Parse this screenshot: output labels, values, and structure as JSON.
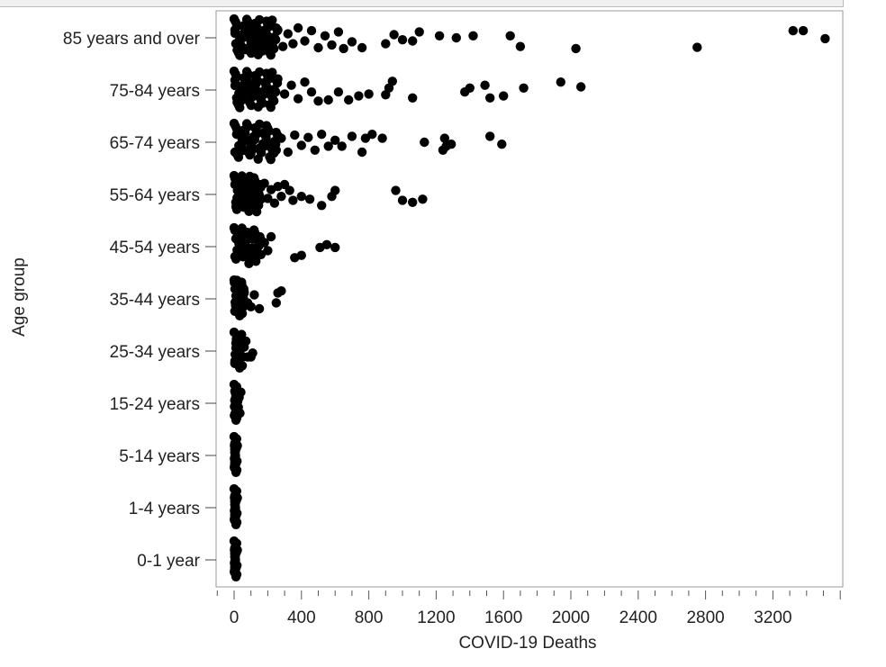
{
  "chart_data": {
    "type": "scatter",
    "title": "",
    "xlabel": "COVID-19 Deaths",
    "ylabel": "Age group",
    "xlim": [
      -100,
      3650
    ],
    "x_ticks": [
      0,
      400,
      800,
      1200,
      1600,
      2000,
      2400,
      2800,
      3200
    ],
    "categories": [
      "85 years and over",
      "75-84 years",
      "65-74 years",
      "55-64 years",
      "45-54 years",
      "35-44 years",
      "25-34 years",
      "15-24 years",
      "5-14 years",
      "1-4 years",
      "0-1 year"
    ],
    "grid": false,
    "legend": "none",
    "marker_color": "#000000",
    "series": [
      {
        "category": "85 years and over",
        "points": [
          [
            5,
            -0.2
          ],
          [
            10,
            0.15
          ],
          [
            20,
            -0.3
          ],
          [
            30,
            0.25
          ],
          [
            40,
            0
          ],
          [
            55,
            -0.1
          ],
          [
            70,
            0.3
          ],
          [
            85,
            -0.25
          ],
          [
            100,
            0.1
          ],
          [
            120,
            -0.15
          ],
          [
            140,
            0.28
          ],
          [
            160,
            -0.05
          ],
          [
            180,
            0.2
          ],
          [
            200,
            -0.3
          ],
          [
            230,
            0.05
          ],
          [
            260,
            -0.2
          ],
          [
            290,
            0.22
          ],
          [
            320,
            -0.1
          ],
          [
            350,
            0.15
          ],
          [
            380,
            -0.25
          ],
          [
            420,
            0.08
          ],
          [
            460,
            -0.18
          ],
          [
            500,
            0.25
          ],
          [
            540,
            -0.05
          ],
          [
            580,
            0.18
          ],
          [
            620,
            -0.15
          ],
          [
            650,
            0.27
          ],
          [
            700,
            0.1
          ],
          [
            760,
            0.25
          ],
          [
            900,
            0.15
          ],
          [
            950,
            -0.08
          ],
          [
            1000,
            0.05
          ],
          [
            1060,
            0.08
          ],
          [
            1100,
            -0.15
          ],
          [
            1220,
            -0.05
          ],
          [
            1320,
            0
          ],
          [
            1420,
            -0.05
          ],
          [
            1640,
            -0.05
          ],
          [
            1700,
            0.22
          ],
          [
            2030,
            0.27
          ],
          [
            2750,
            0.24
          ],
          [
            3320,
            -0.18
          ],
          [
            3380,
            -0.18
          ],
          [
            3510,
            0.02
          ]
        ]
      },
      {
        "category": "75-84 years",
        "points": [
          [
            5,
            -0.25
          ],
          [
            15,
            0.2
          ],
          [
            25,
            -0.1
          ],
          [
            40,
            0.28
          ],
          [
            60,
            0.05
          ],
          [
            80,
            -0.22
          ],
          [
            100,
            0.18
          ],
          [
            130,
            -0.15
          ],
          [
            160,
            0.25
          ],
          [
            190,
            -0.05
          ],
          [
            220,
            0.12
          ],
          [
            260,
            -0.28
          ],
          [
            300,
            0.1
          ],
          [
            340,
            -0.12
          ],
          [
            380,
            0.22
          ],
          [
            420,
            -0.2
          ],
          [
            460,
            0.05
          ],
          [
            500,
            0.28
          ],
          [
            560,
            0.25
          ],
          [
            620,
            0.05
          ],
          [
            680,
            0.25
          ],
          [
            740,
            0.15
          ],
          [
            800,
            0.1
          ],
          [
            900,
            0.12
          ],
          [
            920,
            -0.05
          ],
          [
            940,
            -0.22
          ],
          [
            1060,
            0.2
          ],
          [
            1370,
            0.05
          ],
          [
            1400,
            -0.05
          ],
          [
            1520,
            0.2
          ],
          [
            1490,
            -0.12
          ],
          [
            1600,
            0.15
          ],
          [
            1720,
            -0.05
          ],
          [
            1940,
            -0.2
          ],
          [
            2060,
            -0.08
          ]
        ]
      },
      {
        "category": "65-74 years",
        "points": [
          [
            5,
            0.25
          ],
          [
            15,
            -0.2
          ],
          [
            30,
            0.1
          ],
          [
            45,
            -0.28
          ],
          [
            60,
            0.2
          ],
          [
            80,
            -0.05
          ],
          [
            100,
            0.28
          ],
          [
            120,
            -0.15
          ],
          [
            150,
            0.15
          ],
          [
            180,
            -0.25
          ],
          [
            210,
            0.05
          ],
          [
            250,
            0.2
          ],
          [
            280,
            -0.1
          ],
          [
            320,
            0.25
          ],
          [
            360,
            -0.18
          ],
          [
            400,
            0.08
          ],
          [
            440,
            -0.12
          ],
          [
            480,
            0.2
          ],
          [
            520,
            -0.2
          ],
          [
            560,
            0.1
          ],
          [
            600,
            -0.05
          ],
          [
            640,
            0.1
          ],
          [
            700,
            -0.15
          ],
          [
            760,
            0.25
          ],
          [
            780,
            -0.1
          ],
          [
            820,
            -0.2
          ],
          [
            880,
            -0.1
          ],
          [
            1130,
            0
          ],
          [
            1240,
            0.2
          ],
          [
            1260,
            0.1
          ],
          [
            1250,
            -0.1
          ],
          [
            1290,
            0.05
          ],
          [
            1520,
            -0.15
          ],
          [
            1590,
            0.05
          ]
        ]
      },
      {
        "category": "55-64 years",
        "points": [
          [
            5,
            -0.25
          ],
          [
            10,
            0.2
          ],
          [
            20,
            -0.1
          ],
          [
            35,
            0.28
          ],
          [
            50,
            0.05
          ],
          [
            65,
            -0.22
          ],
          [
            80,
            0.18
          ],
          [
            100,
            -0.15
          ],
          [
            120,
            0.25
          ],
          [
            140,
            -0.05
          ],
          [
            160,
            0.12
          ],
          [
            180,
            -0.28
          ],
          [
            200,
            0.1
          ],
          [
            220,
            -0.12
          ],
          [
            240,
            0.22
          ],
          [
            260,
            -0.2
          ],
          [
            280,
            0.05
          ],
          [
            300,
            -0.25
          ],
          [
            330,
            -0.1
          ],
          [
            350,
            0.15
          ],
          [
            400,
            0.05
          ],
          [
            450,
            0.12
          ],
          [
            520,
            0.28
          ],
          [
            580,
            0.05
          ],
          [
            600,
            -0.1
          ],
          [
            960,
            -0.1
          ],
          [
            1000,
            0.15
          ],
          [
            1060,
            0.2
          ],
          [
            1120,
            0.12
          ]
        ]
      },
      {
        "category": "45-54 years",
        "points": [
          [
            5,
            0.25
          ],
          [
            10,
            -0.2
          ],
          [
            20,
            0.1
          ],
          [
            30,
            -0.28
          ],
          [
            45,
            0.2
          ],
          [
            60,
            -0.05
          ],
          [
            80,
            0.15
          ],
          [
            100,
            -0.25
          ],
          [
            120,
            0.05
          ],
          [
            140,
            -0.15
          ],
          [
            160,
            0.2
          ],
          [
            180,
            -0.1
          ],
          [
            200,
            0.1
          ],
          [
            220,
            -0.25
          ],
          [
            360,
            0.28
          ],
          [
            400,
            0.22
          ],
          [
            510,
            0.02
          ],
          [
            550,
            -0.05
          ],
          [
            600,
            0.02
          ]
        ]
      },
      {
        "category": "35-44 years",
        "points": [
          [
            5,
            -0.25
          ],
          [
            10,
            0.2
          ],
          [
            15,
            -0.1
          ],
          [
            20,
            0.28
          ],
          [
            30,
            0.05
          ],
          [
            40,
            -0.22
          ],
          [
            50,
            0.15
          ],
          [
            60,
            -0.15
          ],
          [
            80,
            0.1
          ],
          [
            100,
            0.2
          ],
          [
            120,
            -0.1
          ],
          [
            150,
            0.25
          ],
          [
            250,
            0.1
          ],
          [
            260,
            -0.15
          ],
          [
            280,
            -0.2
          ]
        ]
      },
      {
        "category": "25-34 years",
        "points": [
          [
            5,
            0.25
          ],
          [
            10,
            -0.2
          ],
          [
            15,
            0.1
          ],
          [
            20,
            -0.28
          ],
          [
            30,
            0.2
          ],
          [
            40,
            -0.05
          ],
          [
            50,
            0.15
          ],
          [
            60,
            -0.1
          ],
          [
            70,
            -0.25
          ],
          [
            80,
            0.15
          ],
          [
            100,
            0.15
          ],
          [
            110,
            0.05
          ]
        ]
      },
      {
        "category": "15-24 years",
        "points": [
          [
            5,
            0.28
          ],
          [
            8,
            -0.25
          ],
          [
            10,
            0.15
          ],
          [
            12,
            -0.1
          ],
          [
            15,
            0.05
          ],
          [
            18,
            -0.2
          ],
          [
            20,
            0.2
          ],
          [
            22,
            -0.05
          ],
          [
            25,
            0.1
          ],
          [
            30,
            -0.15
          ],
          [
            35,
            0.25
          ],
          [
            40,
            -0.28
          ]
        ]
      },
      {
        "category": "5-14 years",
        "points": [
          [
            2,
            0.28
          ],
          [
            3,
            -0.28
          ],
          [
            4,
            0.2
          ],
          [
            5,
            -0.2
          ],
          [
            6,
            0.1
          ],
          [
            7,
            -0.1
          ],
          [
            8,
            0
          ],
          [
            5,
            0.15
          ],
          [
            4,
            -0.15
          ],
          [
            3,
            0.05
          ],
          [
            6,
            -0.05
          ],
          [
            7,
            0.25
          ],
          [
            2,
            -0.25
          ]
        ]
      },
      {
        "category": "1-4 years",
        "points": [
          [
            2,
            0.28
          ],
          [
            3,
            -0.28
          ],
          [
            4,
            0.2
          ],
          [
            5,
            -0.2
          ],
          [
            6,
            0.1
          ],
          [
            7,
            -0.1
          ],
          [
            8,
            0
          ],
          [
            5,
            0.15
          ],
          [
            4,
            -0.15
          ],
          [
            3,
            0.05
          ],
          [
            6,
            -0.05
          ],
          [
            7,
            0.25
          ],
          [
            2,
            -0.25
          ]
        ]
      },
      {
        "category": "0-1 year",
        "points": [
          [
            2,
            0.28
          ],
          [
            3,
            -0.28
          ],
          [
            4,
            0.2
          ],
          [
            5,
            -0.2
          ],
          [
            6,
            0.1
          ],
          [
            7,
            -0.1
          ],
          [
            8,
            0
          ],
          [
            5,
            0.15
          ],
          [
            4,
            -0.15
          ],
          [
            3,
            0.05
          ],
          [
            6,
            -0.05
          ],
          [
            7,
            0.25
          ],
          [
            2,
            -0.25
          ]
        ]
      }
    ]
  }
}
